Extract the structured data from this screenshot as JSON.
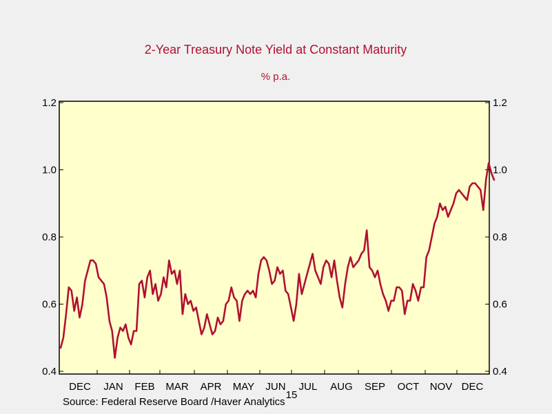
{
  "chart_data": {
    "type": "line",
    "title": "2-Year Treasury Note Yield at Constant Maturity",
    "subtitle": "% p.a.",
    "source": "Source:  Federal Reserve Board /Haver Analytics",
    "year_label": "15",
    "xlabel": "",
    "ylabel": "% p.a.",
    "ylim": [
      0.4,
      1.2
    ],
    "yticks": [
      "0.4",
      "0.6",
      "0.8",
      "1.0",
      "1.2"
    ],
    "months": [
      "DEC",
      "JAN",
      "FEB",
      "MAR",
      "APR",
      "MAY",
      "JUN",
      "JUL",
      "AUG",
      "SEP",
      "OCT",
      "NOV",
      "DEC"
    ],
    "x_unit": "week index from start (each month ~4.3 weeks)",
    "colors": {
      "line": "#b01030",
      "plot_bg": "#ffffcc",
      "title": "#b01030",
      "page_bg": "#f0f0f0"
    },
    "series": [
      {
        "name": "2-Year Treasury Note Yield",
        "values": [
          0.47,
          0.5,
          0.57,
          0.65,
          0.64,
          0.58,
          0.62,
          0.56,
          0.6,
          0.67,
          0.7,
          0.73,
          0.73,
          0.72,
          0.68,
          0.67,
          0.66,
          0.62,
          0.55,
          0.52,
          0.44,
          0.5,
          0.53,
          0.52,
          0.54,
          0.5,
          0.48,
          0.52,
          0.52,
          0.66,
          0.67,
          0.62,
          0.68,
          0.7,
          0.63,
          0.66,
          0.61,
          0.63,
          0.68,
          0.65,
          0.73,
          0.69,
          0.7,
          0.66,
          0.7,
          0.57,
          0.63,
          0.6,
          0.61,
          0.58,
          0.59,
          0.55,
          0.51,
          0.53,
          0.57,
          0.54,
          0.51,
          0.52,
          0.56,
          0.54,
          0.55,
          0.6,
          0.61,
          0.65,
          0.62,
          0.61,
          0.55,
          0.61,
          0.63,
          0.64,
          0.63,
          0.64,
          0.62,
          0.69,
          0.73,
          0.74,
          0.73,
          0.7,
          0.66,
          0.67,
          0.71,
          0.69,
          0.7,
          0.64,
          0.63,
          0.59,
          0.55,
          0.6,
          0.69,
          0.63,
          0.66,
          0.69,
          0.72,
          0.75,
          0.7,
          0.68,
          0.66,
          0.71,
          0.73,
          0.72,
          0.68,
          0.73,
          0.67,
          0.62,
          0.59,
          0.66,
          0.71,
          0.74,
          0.71,
          0.72,
          0.73,
          0.75,
          0.76,
          0.82,
          0.71,
          0.7,
          0.68,
          0.7,
          0.66,
          0.63,
          0.61,
          0.58,
          0.61,
          0.61,
          0.65,
          0.65,
          0.64,
          0.57,
          0.61,
          0.61,
          0.66,
          0.64,
          0.61,
          0.65,
          0.65,
          0.74,
          0.76,
          0.8,
          0.84,
          0.86,
          0.9,
          0.88,
          0.89,
          0.86,
          0.88,
          0.9,
          0.93,
          0.94,
          0.93,
          0.92,
          0.91,
          0.95,
          0.96,
          0.96,
          0.95,
          0.94,
          0.88,
          0.97,
          1.02,
          0.99,
          0.97
        ]
      }
    ]
  }
}
